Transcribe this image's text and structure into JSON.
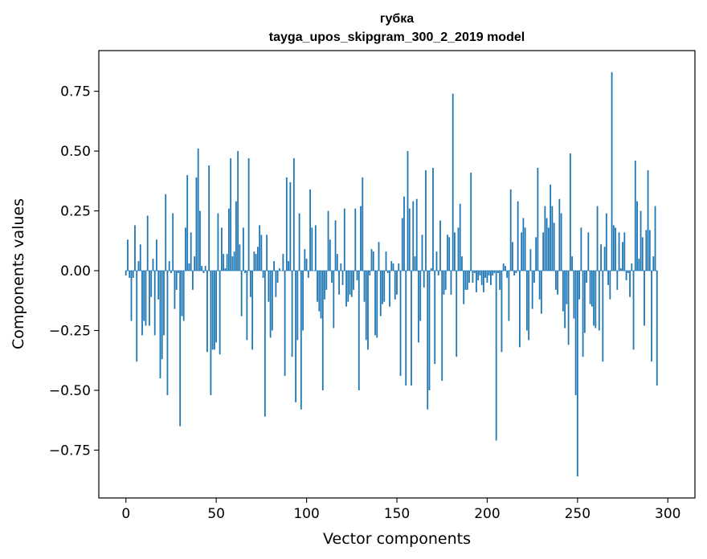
{
  "chart_data": {
    "type": "bar",
    "title": "губка",
    "subtitle": "tayga_upos_skipgram_300_2_2019 model",
    "xlabel": "Vector components",
    "ylabel": "Components values",
    "xlim": [
      -15,
      315
    ],
    "ylim": [
      -0.95,
      0.92
    ],
    "xticks": [
      0,
      50,
      100,
      150,
      200,
      250,
      300
    ],
    "xtick_labels": [
      "0",
      "50",
      "100",
      "150",
      "200",
      "250",
      "300"
    ],
    "yticks": [
      -0.75,
      -0.5,
      -0.25,
      0.0,
      0.25,
      0.5,
      0.75
    ],
    "ytick_labels": [
      "−0.75",
      "−0.50",
      "−0.25",
      "0.00",
      "0.25",
      "0.50",
      "0.75"
    ],
    "grid": false,
    "bar_color": "#1f77b4",
    "values": [
      -0.02,
      0.13,
      -0.03,
      -0.21,
      -0.03,
      0.19,
      -0.38,
      0.04,
      0.11,
      -0.27,
      -0.21,
      -0.23,
      0.23,
      -0.23,
      -0.11,
      0.05,
      -0.27,
      0.13,
      -0.12,
      -0.45,
      -0.37,
      -0.27,
      0.32,
      -0.52,
      0.04,
      -0.01,
      0.24,
      -0.16,
      -0.08,
      -0.01,
      -0.65,
      -0.19,
      -0.21,
      0.18,
      0.4,
      0.03,
      0.16,
      -0.08,
      0.06,
      0.39,
      0.51,
      0.25,
      0.02,
      -0.01,
      0.02,
      -0.34,
      0.44,
      -0.52,
      -0.33,
      -0.33,
      -0.3,
      0.24,
      -0.35,
      0.18,
      0.07,
      0.01,
      0.07,
      0.26,
      0.47,
      0.06,
      0.08,
      0.29,
      0.5,
      0.11,
      -0.19,
      0.18,
      -0.01,
      -0.29,
      0.47,
      -0.11,
      -0.33,
      0.08,
      0.07,
      0.1,
      0.19,
      0.15,
      -0.03,
      -0.61,
      0.15,
      -0.13,
      -0.28,
      -0.25,
      0.04,
      -0.11,
      -0.05,
      0.01,
      0.0,
      0.07,
      -0.44,
      0.39,
      0.04,
      0.37,
      -0.36,
      0.47,
      -0.55,
      -0.29,
      0.24,
      -0.58,
      -0.25,
      0.09,
      0.05,
      -0.03,
      0.34,
      0.18,
      0.0,
      0.19,
      -0.13,
      -0.17,
      -0.2,
      -0.5,
      -0.12,
      -0.08,
      0.25,
      0.13,
      -0.05,
      -0.24,
      0.21,
      0.07,
      -0.1,
      0.03,
      -0.06,
      0.26,
      -0.15,
      -0.13,
      -0.1,
      -0.11,
      -0.08,
      0.26,
      -0.04,
      -0.5,
      0.27,
      0.39,
      -0.13,
      -0.29,
      -0.33,
      -0.02,
      0.09,
      0.08,
      -0.27,
      -0.28,
      0.12,
      -0.19,
      -0.14,
      -0.13,
      0.08,
      -0.01,
      -0.15,
      0.04,
      0.03,
      -0.12,
      -0.1,
      0.03,
      -0.44,
      0.22,
      0.31,
      -0.48,
      0.5,
      0.26,
      -0.48,
      0.29,
      0.06,
      0.3,
      -0.3,
      -0.21,
      0.15,
      -0.07,
      0.42,
      -0.58,
      -0.5,
      0.01,
      0.43,
      -0.39,
      0.08,
      -0.02,
      0.21,
      -0.46,
      -0.1,
      -0.08,
      0.15,
      0.14,
      -0.1,
      0.74,
      0.16,
      -0.36,
      0.18,
      0.28,
      0.06,
      -0.14,
      -0.08,
      -0.08,
      -0.05,
      0.41,
      -0.05,
      -0.01,
      -0.09,
      -0.04,
      -0.02,
      -0.06,
      -0.09,
      -0.03,
      -0.05,
      -0.02,
      -0.06,
      -0.02,
      -0.01,
      -0.71,
      -0.01,
      -0.08,
      -0.34,
      0.03,
      0.02,
      -0.03,
      -0.21,
      0.34,
      0.12,
      -0.02,
      -0.01,
      0.29,
      -0.32,
      0.16,
      0.22,
      0.18,
      -0.25,
      -0.29,
      0.09,
      -0.16,
      -0.05,
      0.14,
      0.43,
      -0.12,
      -0.18,
      0.16,
      0.27,
      0.22,
      0.18,
      0.36,
      0.27,
      0.2,
      -0.08,
      -0.1,
      0.3,
      0.24,
      -0.17,
      -0.24,
      -0.14,
      -0.31,
      0.49,
      0.06,
      -0.2,
      -0.52,
      -0.86,
      -0.12,
      0.18,
      -0.36,
      -0.26,
      -0.05,
      0.16,
      -0.14,
      -0.15,
      -0.23,
      -0.24,
      0.27,
      -0.25,
      0.11,
      -0.38,
      0.1,
      0.24,
      -0.06,
      -0.12,
      0.83,
      0.19,
      0.18,
      -0.08,
      0.16,
      0.01,
      0.12,
      0.16,
      -0.04,
      -0.01,
      -0.11,
      0.03,
      -0.33,
      0.46,
      0.29,
      0.05,
      0.25,
      0.14,
      -0.23,
      0.17,
      0.42,
      0.17,
      -0.38,
      0.06,
      0.27,
      -0.48
    ]
  }
}
